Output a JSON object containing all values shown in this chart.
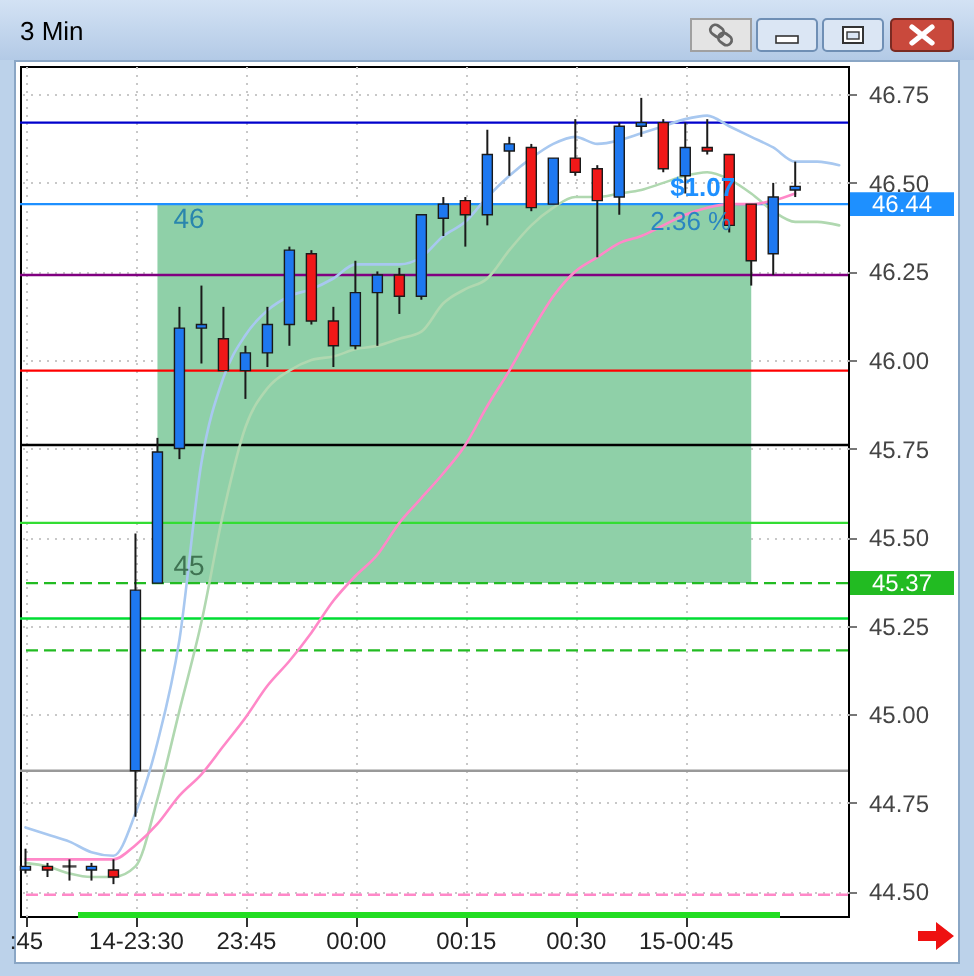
{
  "chart_data": {
    "type": "candlestick",
    "title": "3 Min",
    "categories": [
      ":45",
      null,
      null,
      null,
      null,
      "14-23:30",
      null,
      null,
      null,
      null,
      "23:45",
      null,
      null,
      null,
      null,
      "00:00",
      null,
      null,
      null,
      null,
      "00:15",
      null,
      null,
      null,
      null,
      "00:30",
      null,
      null,
      null,
      null,
      "15-00:45",
      null,
      null,
      null,
      null,
      null,
      null,
      null
    ],
    "ohlc": [
      [
        44.56,
        44.62,
        44.55,
        44.57
      ],
      [
        44.57,
        44.58,
        44.54,
        44.56
      ],
      [
        44.57,
        44.59,
        44.53,
        44.57
      ],
      [
        44.56,
        44.58,
        44.53,
        44.57
      ],
      [
        44.56,
        44.59,
        44.52,
        44.54
      ],
      [
        44.84,
        45.51,
        44.71,
        45.35
      ],
      [
        45.37,
        45.78,
        45.37,
        45.74
      ],
      [
        45.75,
        46.15,
        45.72,
        46.09
      ],
      [
        46.09,
        46.21,
        45.99,
        46.1
      ],
      [
        46.06,
        46.15,
        45.97,
        45.97
      ],
      [
        45.97,
        46.04,
        45.89,
        46.02
      ],
      [
        46.02,
        46.15,
        45.98,
        46.1
      ],
      [
        46.1,
        46.32,
        46.04,
        46.31
      ],
      [
        46.3,
        46.31,
        46.1,
        46.11
      ],
      [
        46.11,
        46.15,
        45.98,
        46.04
      ],
      [
        46.04,
        46.28,
        46.03,
        46.19
      ],
      [
        46.19,
        46.25,
        46.04,
        46.24
      ],
      [
        46.24,
        46.26,
        46.13,
        46.18
      ],
      [
        46.18,
        46.41,
        46.17,
        46.41
      ],
      [
        46.4,
        46.46,
        46.35,
        46.44
      ],
      [
        46.45,
        46.46,
        46.32,
        46.41
      ],
      [
        46.41,
        46.65,
        46.38,
        46.58
      ],
      [
        46.59,
        46.63,
        46.52,
        46.61
      ],
      [
        46.6,
        46.61,
        46.42,
        46.43
      ],
      [
        46.44,
        46.57,
        46.44,
        46.57
      ],
      [
        46.57,
        46.68,
        46.52,
        46.53
      ],
      [
        46.54,
        46.55,
        46.29,
        46.45
      ],
      [
        46.46,
        46.67,
        46.41,
        46.66
      ],
      [
        46.66,
        46.74,
        46.63,
        46.67
      ],
      [
        46.67,
        46.68,
        46.53,
        46.54
      ],
      [
        46.52,
        46.67,
        46.47,
        46.6
      ],
      [
        46.6,
        46.68,
        46.58,
        46.59
      ],
      [
        46.58,
        46.58,
        46.36,
        46.38
      ],
      [
        46.44,
        46.44,
        46.21,
        46.28
      ],
      [
        46.3,
        46.5,
        46.24,
        46.46
      ],
      [
        46.48,
        46.56,
        46.46,
        46.49
      ],
      null,
      null
    ],
    "colors": [
      "#1e78f0",
      "#f01818",
      "#000000",
      "#1e78f0",
      "#f01818",
      "#1e78f0",
      "#1e78f0",
      "#1e78f0",
      "#1e78f0",
      "#f01818",
      "#1e78f0",
      "#1e78f0",
      "#1e78f0",
      "#f01818",
      "#f01818",
      "#1e78f0",
      "#1e78f0",
      "#f01818",
      "#1e78f0",
      "#1e78f0",
      "#f01818",
      "#1e78f0",
      "#1e78f0",
      "#f01818",
      "#1e78f0",
      "#f01818",
      "#f01818",
      "#1e78f0",
      "#1e78f0",
      "#f01818",
      "#1e78f0",
      "#f01818",
      "#f01818",
      "#f01818",
      "#1e78f0",
      "#1e78f0",
      null,
      null
    ],
    "series": [
      {
        "type": "line",
        "color": "#a8c8f0",
        "values": [
          44.68,
          44.66,
          44.64,
          44.61,
          44.6,
          44.72,
          44.92,
          45.21,
          45.71,
          45.95,
          46.07,
          46.14,
          46.18,
          46.2,
          46.23,
          46.27,
          46.27,
          46.27,
          46.29,
          46.35,
          46.39,
          46.46,
          46.52,
          46.57,
          46.61,
          46.63,
          46.61,
          46.62,
          46.64,
          46.66,
          46.68,
          46.69,
          46.66,
          46.63,
          46.6,
          46.56,
          46.56,
          46.55
        ]
      },
      {
        "type": "line",
        "color": "#b0d8b0",
        "values": [
          44.58,
          44.57,
          44.55,
          44.54,
          44.54,
          44.57,
          44.76,
          45.01,
          45.26,
          45.57,
          45.81,
          45.92,
          45.97,
          46.0,
          46.01,
          46.03,
          46.04,
          46.06,
          46.08,
          46.16,
          46.2,
          46.23,
          46.31,
          46.38,
          46.43,
          46.46,
          46.46,
          46.47,
          46.48,
          46.5,
          46.52,
          46.53,
          46.51,
          46.47,
          46.42,
          46.39,
          46.39,
          46.38
        ]
      },
      {
        "type": "line",
        "color": "#ff88c8",
        "values": [
          44.59,
          44.59,
          44.59,
          44.59,
          44.59,
          44.63,
          44.69,
          44.77,
          44.83,
          44.91,
          44.99,
          45.08,
          45.15,
          45.23,
          45.32,
          45.39,
          45.45,
          45.54,
          45.61,
          45.68,
          45.76,
          45.87,
          45.97,
          46.08,
          46.18,
          46.25,
          46.29,
          46.33,
          46.35,
          46.38,
          46.41,
          46.43,
          46.44,
          46.44,
          46.45,
          46.47,
          null,
          null
        ]
      }
    ],
    "ylim": [
      44.43,
      46.83
    ],
    "yticks": [
      {
        "value": 44.5,
        "label": "44.50"
      },
      44.75,
      {
        "value": 45,
        "label": "45.00"
      },
      45.25,
      {
        "value": 45.5,
        "label": "45.50"
      },
      45.75,
      {
        "value": 46,
        "label": "46.00"
      },
      46.25,
      {
        "value": 46.5,
        "label": "46.50"
      },
      46.75
    ],
    "grid": true,
    "ref_lines": [
      {
        "axis": "y",
        "value": 46.67,
        "color": "#0000cc"
      },
      {
        "axis": "y",
        "value": 46.44,
        "label": "46.44",
        "color": "#1e90ff"
      },
      {
        "axis": "y",
        "value": 46.24,
        "color": "#800080"
      },
      {
        "axis": "y",
        "value": 45.97,
        "color": "#ff0000"
      },
      {
        "axis": "y",
        "value": 45.76,
        "color": "#000000"
      },
      {
        "axis": "y",
        "value": 45.54,
        "color": "#33dd33"
      },
      {
        "axis": "y",
        "value": 45.37,
        "label": "45.37",
        "color": "#22bb22",
        "line_style": "dashed"
      },
      {
        "axis": "y",
        "value": 45.27,
        "color": "#00dd33"
      },
      {
        "axis": "y",
        "value": 45.18,
        "color": "#22bb22",
        "line_style": "dashed"
      },
      {
        "axis": "y",
        "value": 44.84,
        "color": "#999999"
      },
      {
        "axis": "y",
        "value": 44.49,
        "color": "#ff88c8",
        "line_style": "dashed"
      }
    ],
    "bands": [
      {
        "axis": "y",
        "from": 45.37,
        "to": 46.44,
        "color": "#8fd0a8"
      }
    ],
    "annotations": [
      "46",
      "45",
      "$1.07",
      "2.36 %"
    ]
  }
}
